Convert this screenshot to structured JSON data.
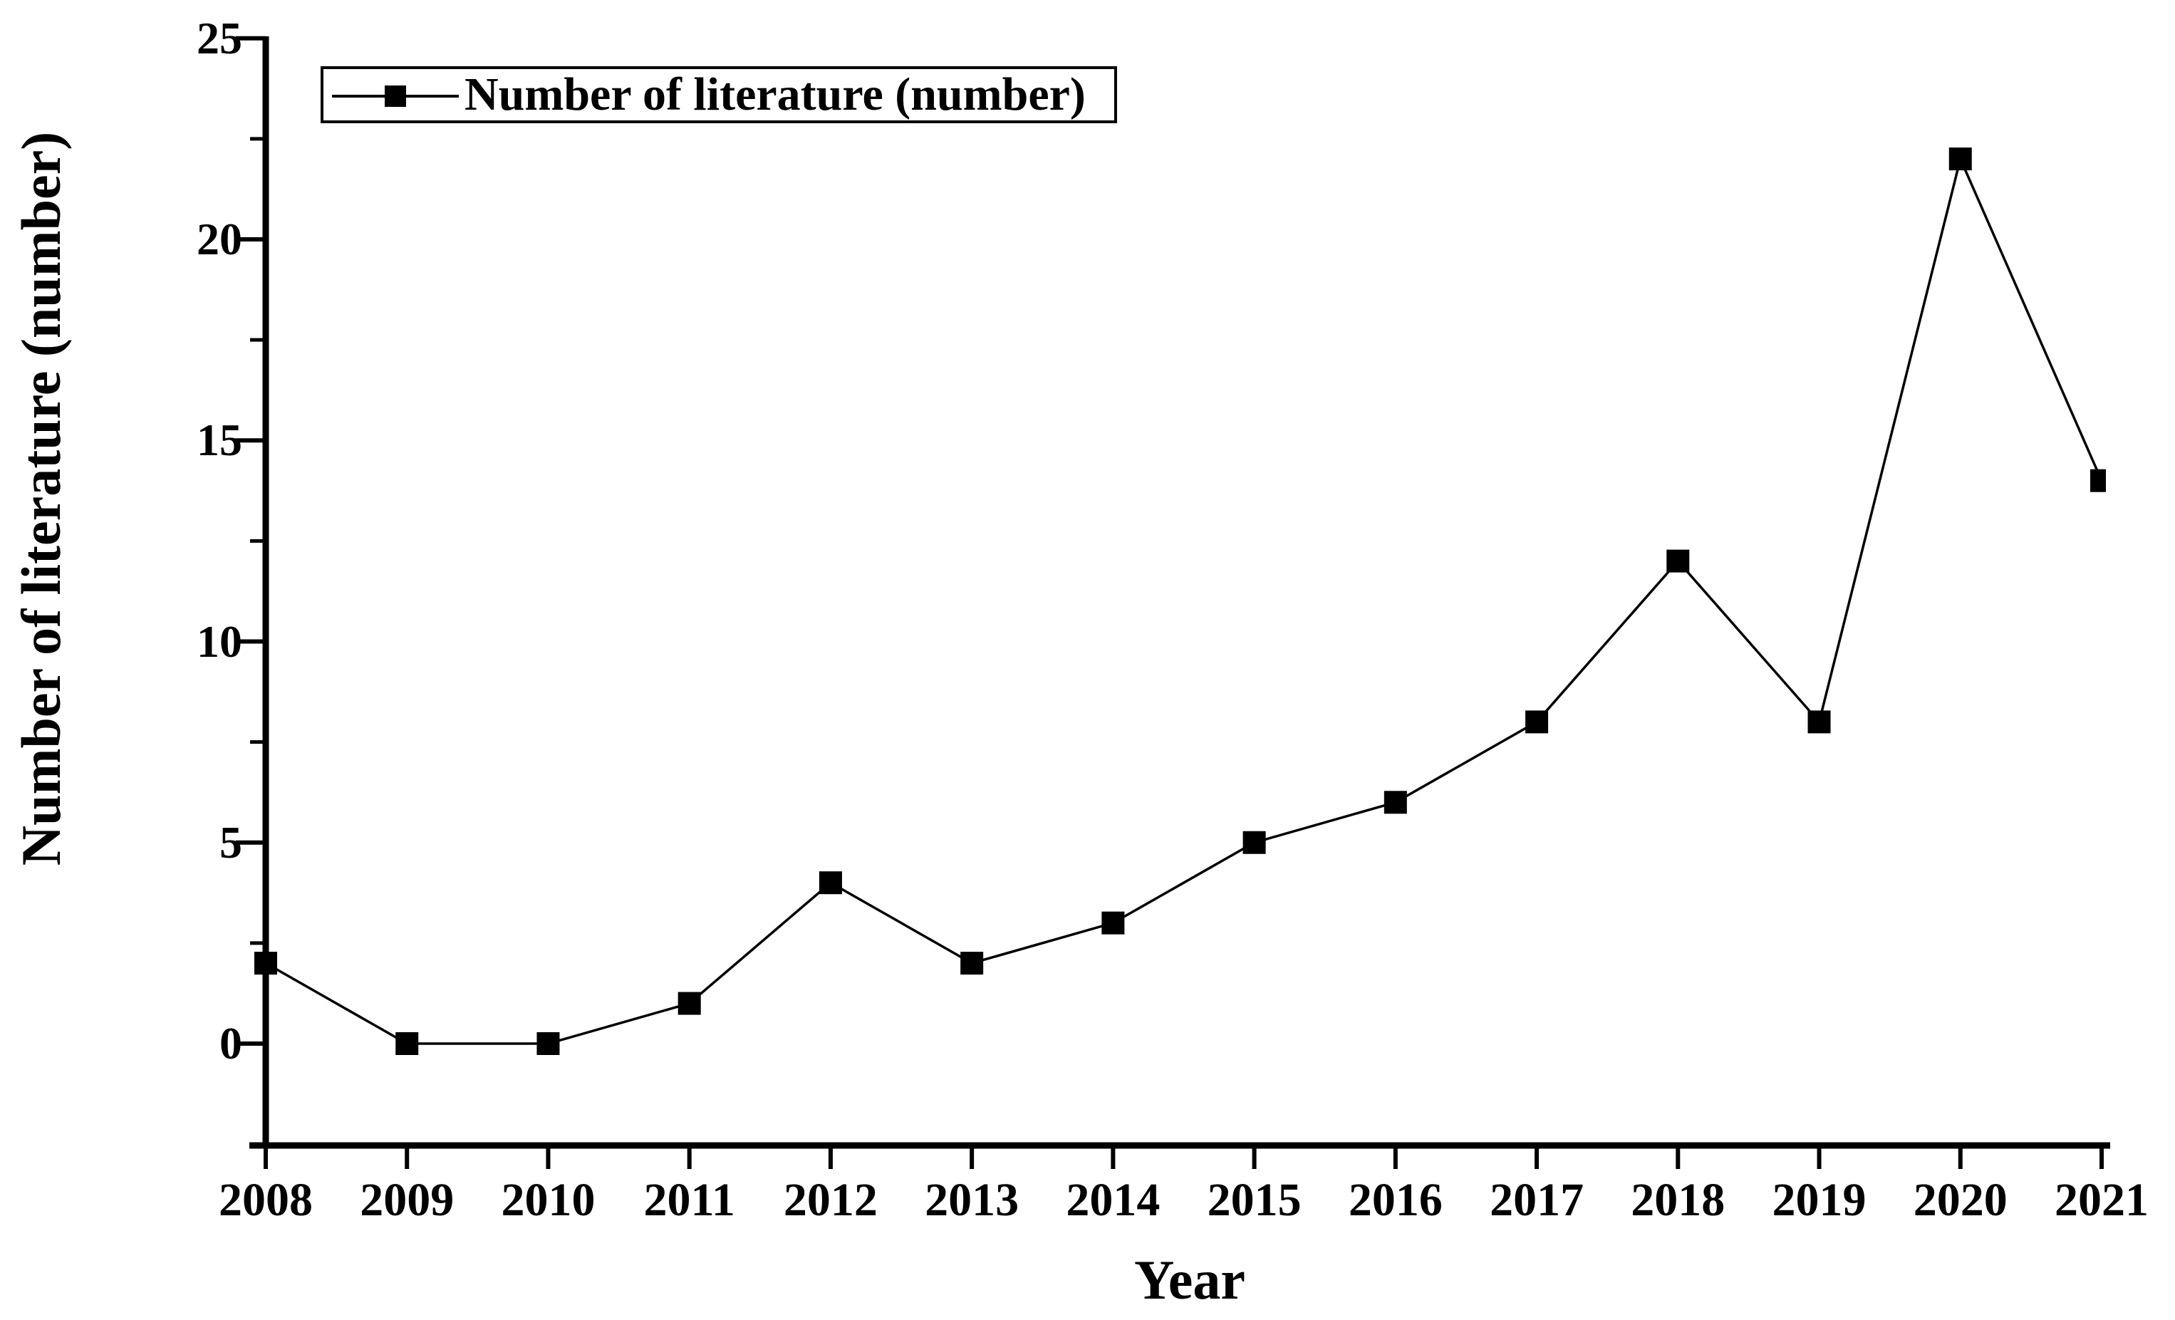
{
  "chart_data": {
    "type": "line",
    "title": "",
    "xlabel": "Year",
    "ylabel": "Number of literature (number)",
    "legend_label": "Number of literature (number)",
    "legend_position": "top-left-inside",
    "categories": [
      "2008",
      "2009",
      "2010",
      "2011",
      "2012",
      "2013",
      "2014",
      "2015",
      "2016",
      "2017",
      "2018",
      "2019",
      "2020",
      "2021"
    ],
    "series": [
      {
        "name": "Number of literature (number)",
        "values": [
          2,
          0,
          0,
          1,
          4,
          2,
          3,
          5,
          6,
          8,
          12,
          8,
          22,
          14
        ]
      }
    ],
    "ylim": [
      -2.5,
      25
    ],
    "yticks": [
      0,
      5,
      10,
      15,
      20,
      25
    ],
    "yticks_minor": [
      2.5,
      7.5,
      12.5,
      17.5,
      22.5
    ],
    "grid": false,
    "marker": "filled-square",
    "line_style": "solid",
    "colors": {
      "line": "#000000",
      "marker": "#000000",
      "axis": "#000000",
      "text": "#000000",
      "background": "#ffffff"
    }
  }
}
